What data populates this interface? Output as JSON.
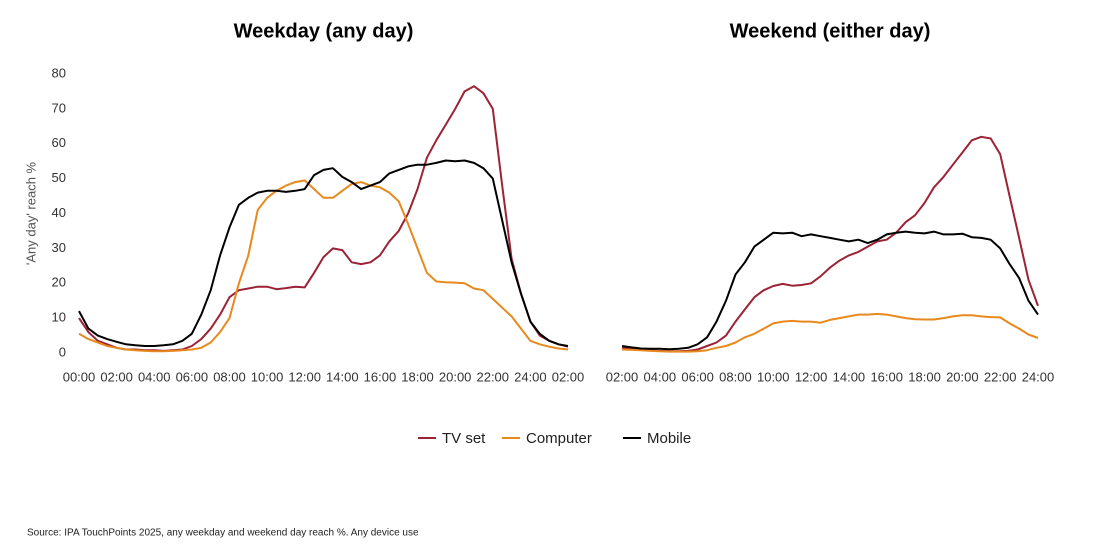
{
  "chart_data": [
    {
      "type": "line",
      "title": "Weekday (any day)",
      "y_label": "'Any day' reach %",
      "x": [
        0,
        0.5,
        1,
        1.5,
        2,
        2.5,
        3,
        3.5,
        4,
        4.5,
        5,
        5.5,
        6,
        6.5,
        7,
        7.5,
        8,
        8.5,
        9,
        9.5,
        10,
        10.5,
        11,
        11.5,
        12,
        12.5,
        13,
        13.5,
        14,
        14.5,
        15,
        15.5,
        16,
        16.5,
        17,
        17.5,
        18,
        18.5,
        19,
        19.5,
        20,
        20.5,
        21,
        21.5,
        22,
        22.5,
        23,
        23.5,
        24,
        24.5,
        25,
        25.5,
        26
      ],
      "xlim": [
        0,
        26
      ],
      "xticks": [
        {
          "value": 0,
          "label": "00:00"
        },
        {
          "value": 2,
          "label": "02:00"
        },
        {
          "value": 4,
          "label": "04:00"
        },
        {
          "value": 6,
          "label": "06:00"
        },
        {
          "value": 8,
          "label": "08:00"
        },
        {
          "value": 10,
          "label": "10:00"
        },
        {
          "value": 12,
          "label": "12:00"
        },
        {
          "value": 14,
          "label": "14:00"
        },
        {
          "value": 16,
          "label": "16:00"
        },
        {
          "value": 18,
          "label": "18:00"
        },
        {
          "value": 20,
          "label": "20:00"
        },
        {
          "value": 22,
          "label": "22:00"
        },
        {
          "value": 24,
          "label": "24:00"
        },
        {
          "value": 26,
          "label": "02:00"
        }
      ],
      "ylim": [
        0,
        80
      ],
      "yticks": [
        0,
        10,
        20,
        30,
        40,
        50,
        60,
        70,
        80
      ],
      "series": [
        {
          "name": "TV set",
          "color": "#9b2335",
          "values": [
            10,
            6,
            3.5,
            2.5,
            1.5,
            1,
            1,
            0.8,
            0.8,
            0.6,
            0.8,
            1,
            2,
            4,
            7,
            11,
            16,
            18,
            18.5,
            19,
            19,
            18.3,
            18.6,
            19,
            18.8,
            23,
            27.5,
            30,
            29.5,
            26,
            25.5,
            26,
            28,
            32,
            35,
            40,
            47,
            56,
            61,
            65.5,
            70,
            75,
            76.5,
            74.5,
            70,
            48,
            27,
            17,
            9,
            5,
            3.5,
            2.5,
            1.8
          ]
        },
        {
          "name": "Computer",
          "color": "#e8891e",
          "values": [
            5.5,
            4,
            3,
            2,
            1.5,
            1,
            0.8,
            0.6,
            0.5,
            0.5,
            0.6,
            0.8,
            1,
            1.5,
            3,
            6,
            10,
            20,
            28,
            41,
            44.5,
            46.5,
            48,
            49,
            49.5,
            47,
            44.5,
            44.5,
            46.5,
            48.5,
            49,
            48,
            47.5,
            46,
            43.5,
            37,
            30,
            23,
            20.5,
            20.3,
            20.2,
            20,
            18.5,
            18,
            15.5,
            13,
            10.5,
            7,
            3.5,
            2.5,
            1.8,
            1.3,
            1
          ]
        },
        {
          "name": "Mobile",
          "color": "#000000",
          "values": [
            12,
            7,
            5,
            4,
            3.2,
            2.5,
            2.2,
            2,
            2,
            2.2,
            2.5,
            3.5,
            5.5,
            11,
            18,
            28,
            36,
            42.5,
            44.5,
            46,
            46.5,
            46.5,
            46.2,
            46.5,
            47,
            51,
            52.5,
            53,
            50.5,
            49,
            47,
            48,
            49,
            51.5,
            52.5,
            53.5,
            54,
            54,
            54.5,
            55.2,
            55,
            55.2,
            54.5,
            53,
            50,
            38,
            26,
            17,
            9,
            5.5,
            3.5,
            2.5,
            2
          ]
        }
      ]
    },
    {
      "type": "line",
      "title": "Weekend (either day)",
      "x": [
        2,
        2.5,
        3,
        3.5,
        4,
        4.5,
        5,
        5.5,
        6,
        6.5,
        7,
        7.5,
        8,
        8.5,
        9,
        9.5,
        10,
        10.5,
        11,
        11.5,
        12,
        12.5,
        13,
        13.5,
        14,
        14.5,
        15,
        15.5,
        16,
        16.5,
        17,
        17.5,
        18,
        18.5,
        19,
        19.5,
        20,
        20.5,
        21,
        21.5,
        22,
        22.5,
        23,
        23.5,
        24
      ],
      "xlim": [
        2,
        24
      ],
      "xticks": [
        {
          "value": 2,
          "label": "02:00"
        },
        {
          "value": 4,
          "label": "04:00"
        },
        {
          "value": 6,
          "label": "06:00"
        },
        {
          "value": 8,
          "label": "08:00"
        },
        {
          "value": 10,
          "label": "10:00"
        },
        {
          "value": 12,
          "label": "12:00"
        },
        {
          "value": 14,
          "label": "14:00"
        },
        {
          "value": 16,
          "label": "16:00"
        },
        {
          "value": 18,
          "label": "18:00"
        },
        {
          "value": 20,
          "label": "20:00"
        },
        {
          "value": 22,
          "label": "22:00"
        },
        {
          "value": 24,
          "label": "24:00"
        }
      ],
      "ylim": [
        0,
        80
      ],
      "series": [
        {
          "color": "#9b2335",
          "values": [
            1.5,
            1.2,
            1,
            0.8,
            0.6,
            0.5,
            0.5,
            0.6,
            1,
            2,
            3,
            5,
            9,
            12.5,
            16,
            18,
            19.2,
            19.8,
            19.3,
            19.5,
            20,
            22,
            24.5,
            26.5,
            28,
            29,
            30.5,
            32,
            32.5,
            34.5,
            37.5,
            39.5,
            43,
            47.5,
            50.5,
            54,
            57.5,
            61,
            62,
            61.5,
            57,
            45,
            33,
            21,
            13.5
          ]
        },
        {
          "color": "#e8891e",
          "values": [
            1,
            0.9,
            0.8,
            0.6,
            0.5,
            0.4,
            0.4,
            0.4,
            0.5,
            0.8,
            1.5,
            2,
            3,
            4.5,
            5.5,
            7,
            8.5,
            9,
            9.2,
            9,
            9,
            8.7,
            9.5,
            10,
            10.5,
            11,
            11,
            11.2,
            11,
            10.5,
            10,
            9.7,
            9.6,
            9.6,
            10,
            10.5,
            10.8,
            10.8,
            10.5,
            10.3,
            10.2,
            8.5,
            7,
            5.3,
            4.3
          ]
        },
        {
          "color": "#000000",
          "values": [
            2,
            1.6,
            1.3,
            1.2,
            1.2,
            1.1,
            1.2,
            1.5,
            2.5,
            4.5,
            9,
            15,
            22.5,
            26,
            30.5,
            32.5,
            34.5,
            34.3,
            34.5,
            33.5,
            34,
            33.5,
            33,
            32.5,
            32,
            32.5,
            31.5,
            32.5,
            34,
            34.5,
            34.8,
            34.5,
            34.3,
            34.8,
            34,
            34,
            34.2,
            33.2,
            33,
            32.5,
            30,
            25.5,
            21.5,
            15,
            11
          ]
        }
      ]
    }
  ],
  "source": "Source: IPA TouchPoints 2025, any weekday and weekend day reach %. Any device use"
}
